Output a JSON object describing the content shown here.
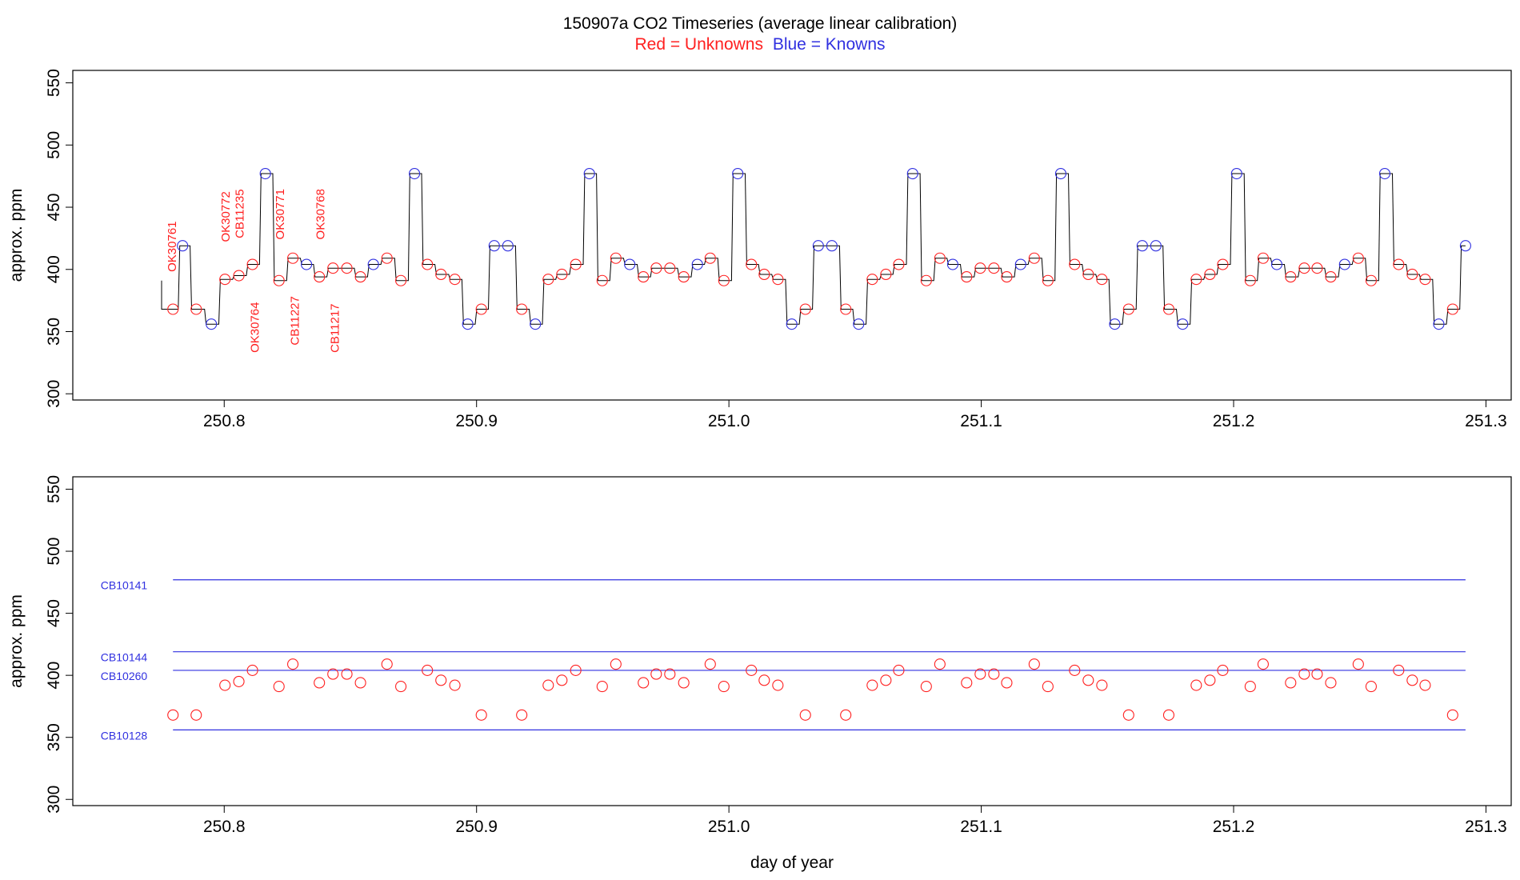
{
  "header": {
    "title": "150907a   CO2 Timeseries (average linear calibration)",
    "legend_unknowns": "Red = Unknowns",
    "legend_knowns": "Blue = Knowns"
  },
  "colors": {
    "unknown": "#ff2020",
    "known": "#3030e0",
    "line": "#000000"
  },
  "chart_data": [
    {
      "type": "line",
      "title": "150907a CO2 Timeseries (average linear calibration)",
      "xlabel": "",
      "ylabel": "approx. ppm",
      "xlim": [
        250.74,
        251.31
      ],
      "ylim": [
        295,
        560
      ],
      "xticks": [
        {
          "v": 250.8,
          "label": "250.8"
        },
        {
          "v": 250.9,
          "label": "250.9"
        },
        {
          "v": 251.0,
          "label": "251.0"
        },
        {
          "v": 251.1,
          "label": "251.1"
        },
        {
          "v": 251.2,
          "label": "251.2"
        },
        {
          "v": 251.3,
          "label": "251.3"
        }
      ],
      "yticks": [
        {
          "v": 300,
          "label": "300"
        },
        {
          "v": 350,
          "label": "350"
        },
        {
          "v": 400,
          "label": "400"
        },
        {
          "v": 450,
          "label": "450"
        },
        {
          "v": 500,
          "label": "500"
        },
        {
          "v": 550,
          "label": "550"
        }
      ],
      "start": [
        250.7752,
        391
      ],
      "trace": [
        [
          250.7797,
          368,
          "u"
        ],
        [
          250.7835,
          419,
          "k"
        ],
        [
          250.7889,
          368,
          "u"
        ],
        [
          250.7949,
          356,
          "k"
        ],
        [
          250.8003,
          392,
          "u"
        ],
        [
          250.8058,
          395,
          "u"
        ],
        [
          250.8112,
          404,
          "u"
        ],
        [
          250.8163,
          477,
          "k"
        ],
        [
          250.8217,
          391,
          "u"
        ],
        [
          250.8272,
          409,
          "u"
        ],
        [
          250.8326,
          404,
          "k"
        ],
        [
          250.8377,
          394,
          "u"
        ],
        [
          250.8431,
          401,
          "u"
        ],
        [
          250.8486,
          401,
          "u"
        ],
        [
          250.854,
          394,
          "u"
        ],
        [
          250.8591,
          404,
          "k"
        ],
        [
          250.8645,
          409,
          "u"
        ],
        [
          250.87,
          391,
          "u"
        ],
        [
          250.8754,
          477,
          "k"
        ],
        [
          250.8805,
          404,
          "u"
        ],
        [
          250.8859,
          396,
          "u"
        ],
        [
          250.8914,
          392,
          "u"
        ],
        [
          250.8965,
          356,
          "k"
        ],
        [
          250.9019,
          368,
          "u"
        ],
        [
          250.907,
          419,
          "k"
        ],
        [
          250.9124,
          419,
          "k"
        ],
        [
          250.9179,
          368,
          "u"
        ],
        [
          250.9233,
          356,
          "k"
        ],
        [
          250.9284,
          392,
          "u"
        ],
        [
          250.9338,
          396,
          "u"
        ],
        [
          250.9393,
          404,
          "u"
        ],
        [
          250.9447,
          477,
          "k"
        ],
        [
          250.9498,
          391,
          "u"
        ],
        [
          250.9552,
          409,
          "u"
        ],
        [
          250.9607,
          404,
          "k"
        ],
        [
          250.9661,
          394,
          "u"
        ],
        [
          250.9712,
          401,
          "u"
        ],
        [
          250.9766,
          401,
          "u"
        ],
        [
          250.9821,
          394,
          "u"
        ],
        [
          250.9875,
          404,
          "k"
        ],
        [
          250.9926,
          409,
          "u"
        ],
        [
          250.998,
          391,
          "u"
        ],
        [
          251.0035,
          477,
          "k"
        ],
        [
          251.0089,
          404,
          "u"
        ],
        [
          251.014,
          396,
          "u"
        ],
        [
          251.0194,
          392,
          "u"
        ],
        [
          251.0249,
          356,
          "k"
        ],
        [
          251.0303,
          368,
          "u"
        ],
        [
          251.0354,
          419,
          "k"
        ],
        [
          251.0408,
          419,
          "k"
        ],
        [
          251.0463,
          368,
          "u"
        ],
        [
          251.0514,
          356,
          "k"
        ],
        [
          251.0568,
          392,
          "u"
        ],
        [
          251.0622,
          396,
          "u"
        ],
        [
          251.0673,
          404,
          "u"
        ],
        [
          251.0728,
          477,
          "k"
        ],
        [
          251.0782,
          391,
          "u"
        ],
        [
          251.0836,
          409,
          "u"
        ],
        [
          251.0887,
          404,
          "k"
        ],
        [
          251.0942,
          394,
          "u"
        ],
        [
          251.0996,
          401,
          "u"
        ],
        [
          251.105,
          401,
          "u"
        ],
        [
          251.1101,
          394,
          "u"
        ],
        [
          251.1156,
          404,
          "k"
        ],
        [
          251.121,
          409,
          "u"
        ],
        [
          251.1264,
          391,
          "u"
        ],
        [
          251.1315,
          477,
          "k"
        ],
        [
          251.137,
          404,
          "u"
        ],
        [
          251.1424,
          396,
          "u"
        ],
        [
          251.1478,
          392,
          "u"
        ],
        [
          251.1529,
          356,
          "k"
        ],
        [
          251.1584,
          368,
          "u"
        ],
        [
          251.1638,
          419,
          "k"
        ],
        [
          251.1692,
          419,
          "k"
        ],
        [
          251.1743,
          368,
          "u"
        ],
        [
          251.1798,
          356,
          "k"
        ],
        [
          251.1852,
          392,
          "u"
        ],
        [
          251.1906,
          396,
          "u"
        ],
        [
          251.1957,
          404,
          "u"
        ],
        [
          251.2012,
          477,
          "k"
        ],
        [
          251.2066,
          391,
          "u"
        ],
        [
          251.2117,
          409,
          "u"
        ],
        [
          251.2171,
          404,
          "k"
        ],
        [
          251.2226,
          394,
          "u"
        ],
        [
          251.228,
          401,
          "u"
        ],
        [
          251.2331,
          401,
          "u"
        ],
        [
          251.2385,
          394,
          "u"
        ],
        [
          251.244,
          404,
          "k"
        ],
        [
          251.2494,
          409,
          "u"
        ],
        [
          251.2545,
          391,
          "u"
        ],
        [
          251.2599,
          477,
          "k"
        ],
        [
          251.2654,
          404,
          "u"
        ],
        [
          251.2708,
          396,
          "u"
        ],
        [
          251.2759,
          392,
          "u"
        ],
        [
          251.2813,
          356,
          "k"
        ],
        [
          251.2868,
          368,
          "u"
        ],
        [
          251.2919,
          419,
          "k"
        ]
      ],
      "annotations": [
        {
          "text": "OK30761",
          "x": 250.7797,
          "y": 398
        },
        {
          "text": "OK30772",
          "x": 250.8009,
          "y": 422
        },
        {
          "text": "CB11235",
          "x": 250.8064,
          "y": 425
        },
        {
          "text": "OK30771",
          "x": 250.8225,
          "y": 424
        },
        {
          "text": "OK30768",
          "x": 250.8385,
          "y": 424
        },
        {
          "text": "OK30764",
          "x": 250.8124,
          "y": 333
        },
        {
          "text": "CB11227",
          "x": 250.8283,
          "y": 339
        },
        {
          "text": "CB11217",
          "x": 250.8442,
          "y": 333
        }
      ]
    },
    {
      "type": "scatter",
      "title": "",
      "xlabel": "day of year",
      "ylabel": "approx. ppm",
      "xlim": [
        250.74,
        251.31
      ],
      "ylim": [
        295,
        560
      ],
      "xticks": [
        {
          "v": 250.8,
          "label": "250.8"
        },
        {
          "v": 250.9,
          "label": "250.9"
        },
        {
          "v": 251.0,
          "label": "251.0"
        },
        {
          "v": 251.1,
          "label": "251.1"
        },
        {
          "v": 251.2,
          "label": "251.2"
        },
        {
          "v": 251.3,
          "label": "251.3"
        }
      ],
      "yticks": [
        {
          "v": 300,
          "label": "300"
        },
        {
          "v": 350,
          "label": "350"
        },
        {
          "v": 400,
          "label": "400"
        },
        {
          "v": 450,
          "label": "450"
        },
        {
          "v": 500,
          "label": "500"
        },
        {
          "v": 550,
          "label": "550"
        }
      ],
      "reference_lines": [
        {
          "name": "CB10141",
          "value": 477,
          "x0": 250.7797,
          "x1": 251.2919
        },
        {
          "name": "CB10144",
          "value": 419,
          "x0": 250.7797,
          "x1": 251.2919
        },
        {
          "name": "CB10260",
          "value": 404,
          "x0": 250.7797,
          "x1": 251.2919
        },
        {
          "name": "CB10128",
          "value": 356,
          "x0": 250.7797,
          "x1": 251.2919
        }
      ],
      "points": [
        [
          250.7797,
          368
        ],
        [
          250.7889,
          368
        ],
        [
          250.8003,
          392
        ],
        [
          250.8058,
          395
        ],
        [
          250.8112,
          404
        ],
        [
          250.8217,
          391
        ],
        [
          250.8272,
          409
        ],
        [
          250.8377,
          394
        ],
        [
          250.8431,
          401
        ],
        [
          250.8486,
          401
        ],
        [
          250.854,
          394
        ],
        [
          250.8645,
          409
        ],
        [
          250.87,
          391
        ],
        [
          250.8805,
          404
        ],
        [
          250.8859,
          396
        ],
        [
          250.8914,
          392
        ],
        [
          250.9019,
          368
        ],
        [
          250.9179,
          368
        ],
        [
          250.9284,
          392
        ],
        [
          250.9338,
          396
        ],
        [
          250.9393,
          404
        ],
        [
          250.9498,
          391
        ],
        [
          250.9552,
          409
        ],
        [
          250.9661,
          394
        ],
        [
          250.9712,
          401
        ],
        [
          250.9766,
          401
        ],
        [
          250.9821,
          394
        ],
        [
          250.9926,
          409
        ],
        [
          250.998,
          391
        ],
        [
          251.0089,
          404
        ],
        [
          251.014,
          396
        ],
        [
          251.0194,
          392
        ],
        [
          251.0303,
          368
        ],
        [
          251.0463,
          368
        ],
        [
          251.0568,
          392
        ],
        [
          251.0622,
          396
        ],
        [
          251.0673,
          404
        ],
        [
          251.0782,
          391
        ],
        [
          251.0836,
          409
        ],
        [
          251.0942,
          394
        ],
        [
          251.0996,
          401
        ],
        [
          251.105,
          401
        ],
        [
          251.1101,
          394
        ],
        [
          251.121,
          409
        ],
        [
          251.1264,
          391
        ],
        [
          251.137,
          404
        ],
        [
          251.1424,
          396
        ],
        [
          251.1478,
          392
        ],
        [
          251.1584,
          368
        ],
        [
          251.1743,
          368
        ],
        [
          251.1852,
          392
        ],
        [
          251.1906,
          396
        ],
        [
          251.1957,
          404
        ],
        [
          251.2066,
          391
        ],
        [
          251.2117,
          409
        ],
        [
          251.2226,
          394
        ],
        [
          251.228,
          401
        ],
        [
          251.2331,
          401
        ],
        [
          251.2385,
          394
        ],
        [
          251.2494,
          409
        ],
        [
          251.2545,
          391
        ],
        [
          251.2654,
          404
        ],
        [
          251.2708,
          396
        ],
        [
          251.2759,
          392
        ],
        [
          251.2868,
          368
        ]
      ]
    }
  ]
}
